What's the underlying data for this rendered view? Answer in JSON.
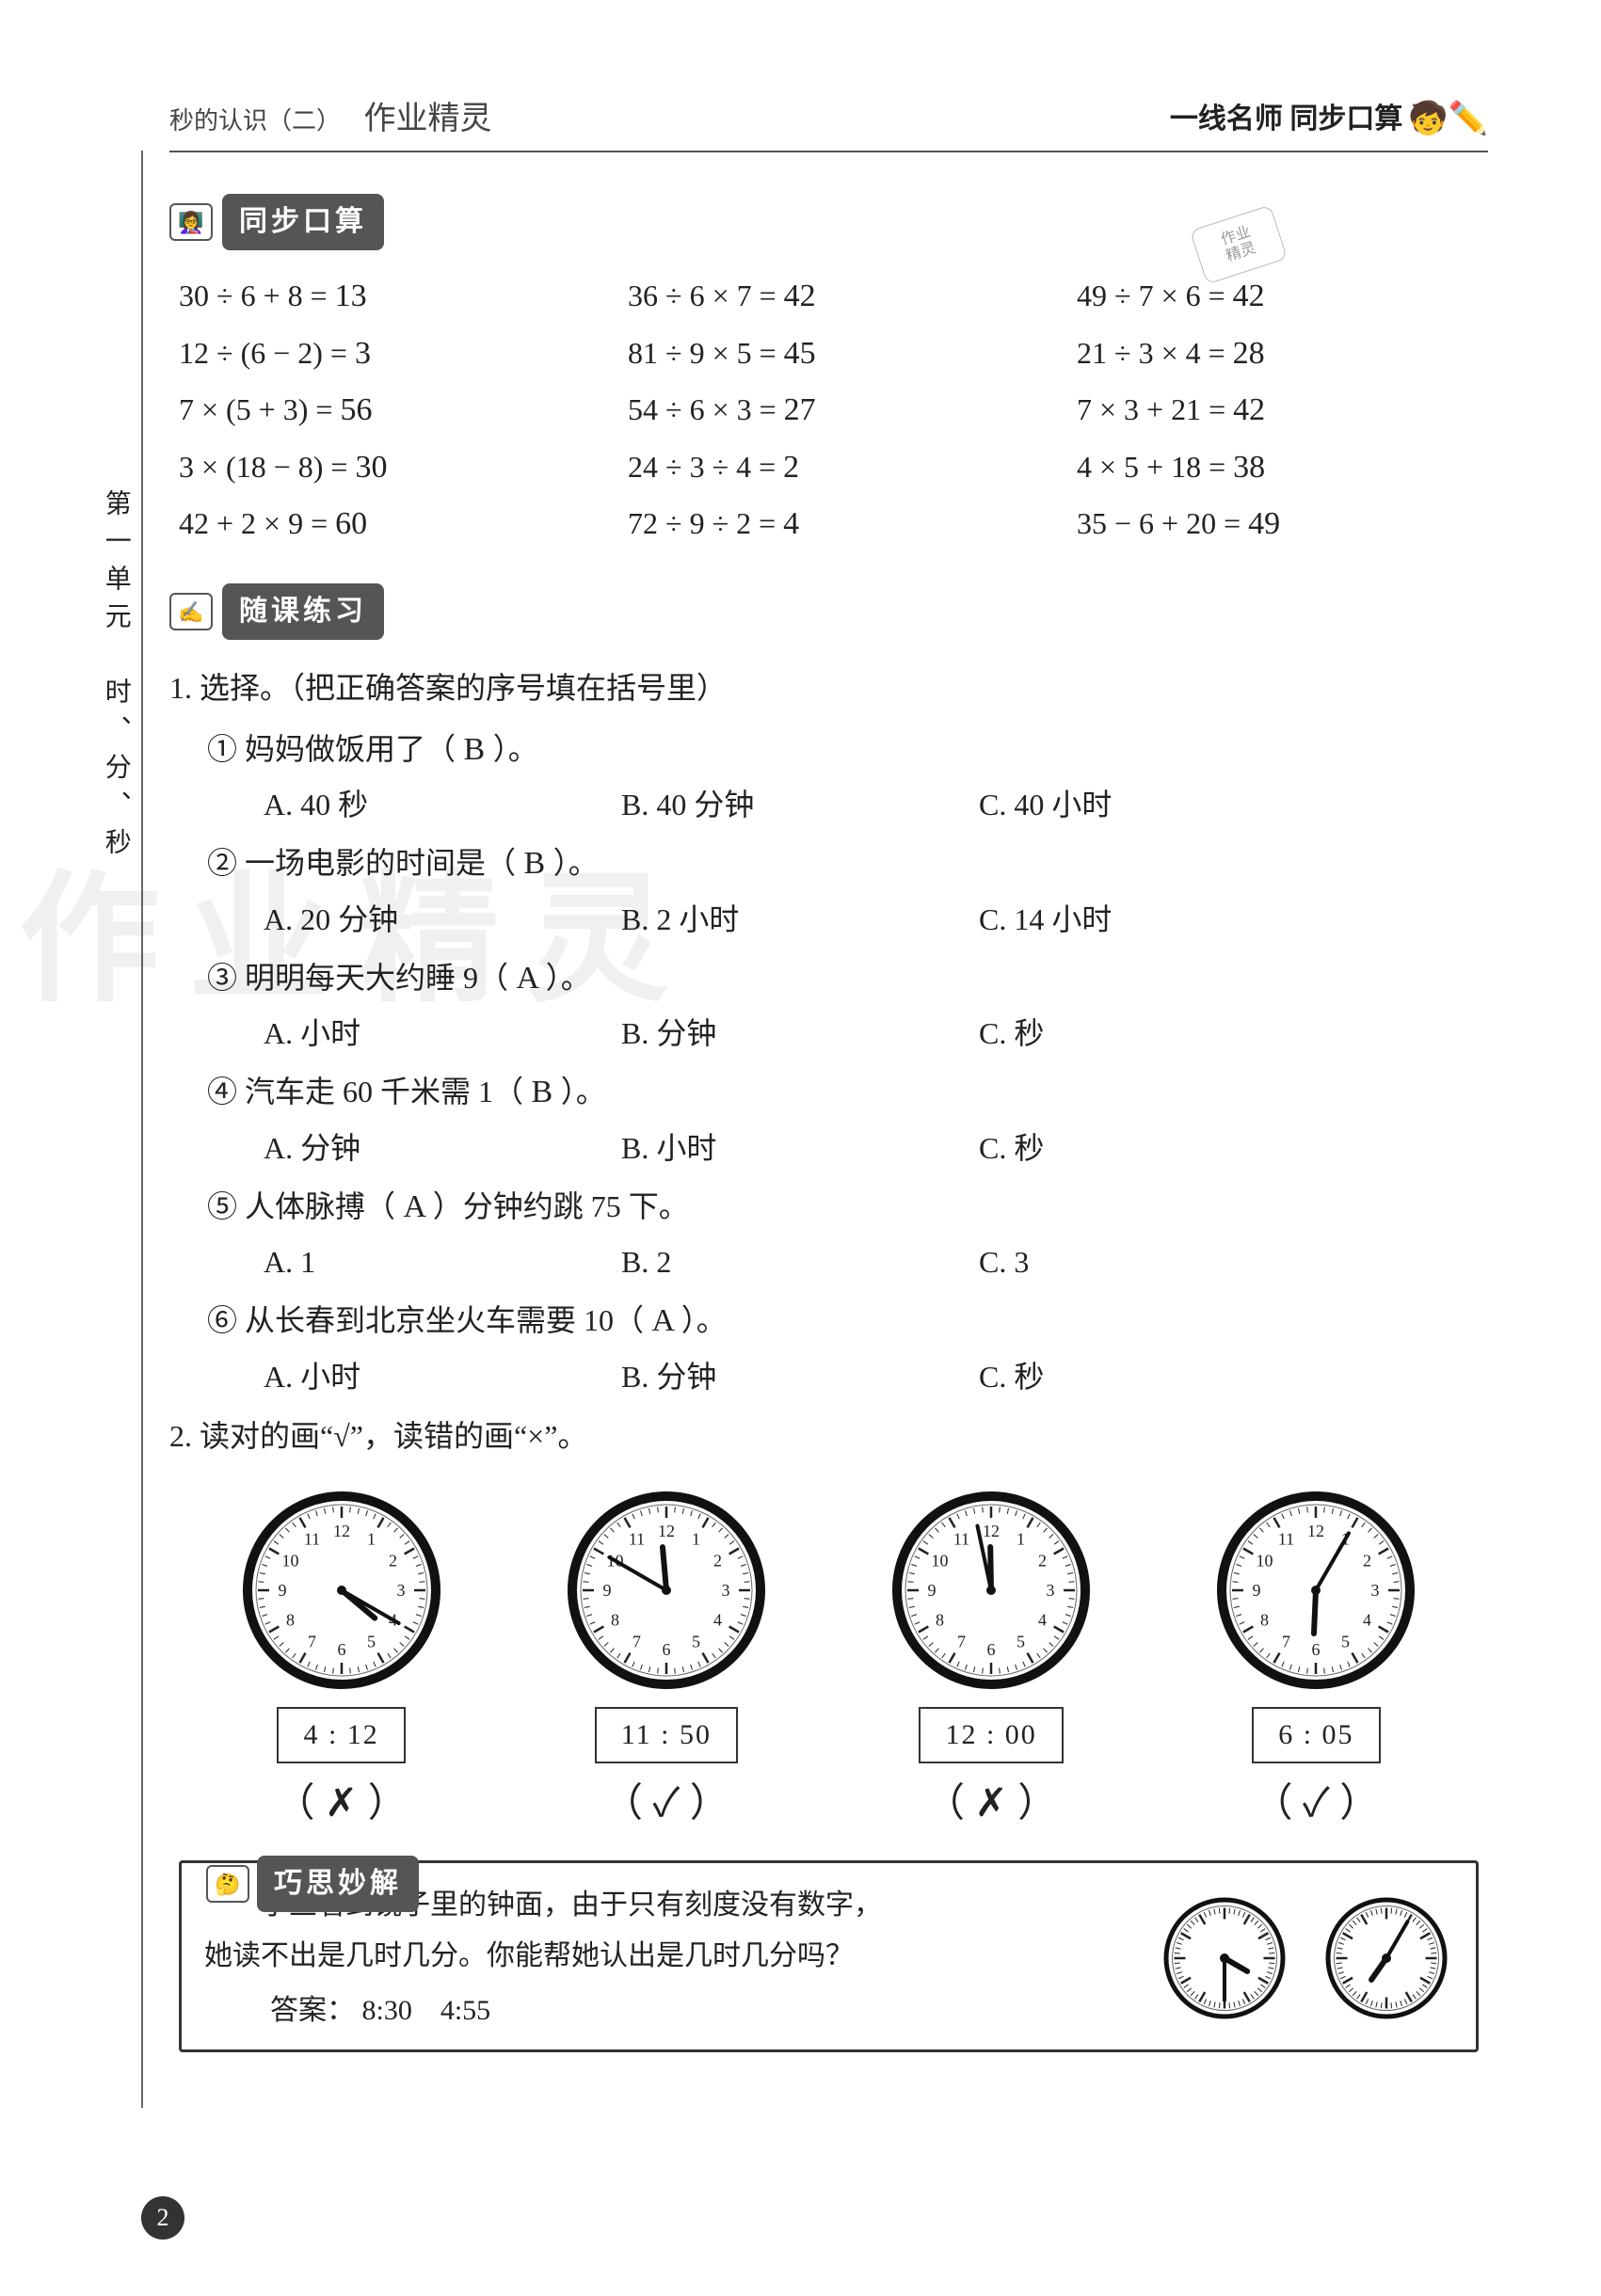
{
  "header": {
    "lesson": "秒的认识（二）",
    "hand_note": "作业精灵",
    "brand": "一线名师 同步口算"
  },
  "sections": {
    "arith_title": "同步口算",
    "practice_title": "随课练习",
    "puzzle_title": "巧思妙解"
  },
  "arith": [
    {
      "expr": "30 ÷ 6 + 8 =",
      "ans": "13"
    },
    {
      "expr": "36 ÷ 6 × 7 =",
      "ans": "42"
    },
    {
      "expr": "49 ÷ 7 × 6 =",
      "ans": "42"
    },
    {
      "expr": "12 ÷ (6 − 2) =",
      "ans": "3"
    },
    {
      "expr": "81 ÷ 9 × 5 =",
      "ans": "45"
    },
    {
      "expr": "21 ÷ 3 × 4 =",
      "ans": "28"
    },
    {
      "expr": "7 × (5 + 3) =",
      "ans": "56"
    },
    {
      "expr": "54 ÷ 6 × 3 =",
      "ans": "27"
    },
    {
      "expr": "7 × 3 + 21 =",
      "ans": "42"
    },
    {
      "expr": "3 × (18 − 8) =",
      "ans": "30"
    },
    {
      "expr": "24 ÷ 3 ÷ 4 =",
      "ans": "2"
    },
    {
      "expr": "4 × 5 + 18 =",
      "ans": "38"
    },
    {
      "expr": "42 + 2 × 9 =",
      "ans": "60"
    },
    {
      "expr": "72 ÷ 9 ÷ 2 =",
      "ans": "4"
    },
    {
      "expr": "35 − 6 + 20 =",
      "ans": "49"
    }
  ],
  "stamp": {
    "l1": "作业",
    "l2": "精灵"
  },
  "side_label": "第一单元　时、分、秒",
  "q1": {
    "head": "1. 选择。（把正确答案的序号填在括号里）",
    "items": [
      {
        "num": "①",
        "text_pre": "妈妈做饭用了（",
        "ans": "B",
        "text_post": "）。",
        "A": "A. 40 秒",
        "B": "B. 40 分钟",
        "C": "C. 40 小时"
      },
      {
        "num": "②",
        "text_pre": "一场电影的时间是（",
        "ans": "B",
        "text_post": "）。",
        "A": "A. 20 分钟",
        "B": "B. 2 小时",
        "C": "C. 14 小时"
      },
      {
        "num": "③",
        "text_pre": "明明每天大约睡 9（",
        "ans": "A",
        "text_post": "）。",
        "A": "A. 小时",
        "B": "B. 分钟",
        "C": "C. 秒"
      },
      {
        "num": "④",
        "text_pre": "汽车走 60 千米需 1（",
        "ans": "B",
        "text_post": "）。",
        "A": "A. 分钟",
        "B": "B. 小时",
        "C": "C. 秒"
      },
      {
        "num": "⑤",
        "text_pre": "人体脉搏（",
        "ans": "A",
        "text_post": "）分钟约跳 75 下。",
        "A": "A. 1",
        "B": "B. 2",
        "C": "C. 3"
      },
      {
        "num": "⑥",
        "text_pre": "从长春到北京坐火车需要 10（",
        "ans": "A",
        "text_post": "）。",
        "A": "A. 小时",
        "B": "B. 分钟",
        "C": "C. 秒"
      }
    ]
  },
  "q2": {
    "head": "2. 读对的画“√”，读错的画“×”。",
    "clocks": [
      {
        "hour": 4,
        "minute": 20,
        "label": "4 : 12",
        "mark": "✗"
      },
      {
        "hour": 11,
        "minute": 50,
        "label": "11 : 50",
        "mark": "✓"
      },
      {
        "hour": 11,
        "minute": 58,
        "label": "12 : 00",
        "mark": "✗"
      },
      {
        "hour": 6,
        "minute": 5,
        "label": "6 : 05",
        "mark": "✓"
      }
    ],
    "clock_style": {
      "radius": 100,
      "outer_stroke": 10,
      "inner_stroke": 2,
      "face": "#ffffff",
      "ring": "#111111",
      "tick": "#222222",
      "hour_len": 46,
      "min_len": 70,
      "hand_color": "#111111",
      "font_size": 18
    }
  },
  "puzzle": {
    "text1": "小兰看到镜子里的钟面，由于只有刻度没有数字，",
    "text2": "她读不出是几时几分。你能帮她认出是几时几分吗？",
    "ans_label": "答案：",
    "ans": "8:30　4:55",
    "mini": [
      {
        "hour": 3.5,
        "minute": 30
      },
      {
        "hour": 7.08,
        "minute": 5
      }
    ],
    "mini_style": {
      "radius": 62,
      "outer_stroke": 5
    }
  },
  "watermark": "作业精灵",
  "page_number": "2"
}
